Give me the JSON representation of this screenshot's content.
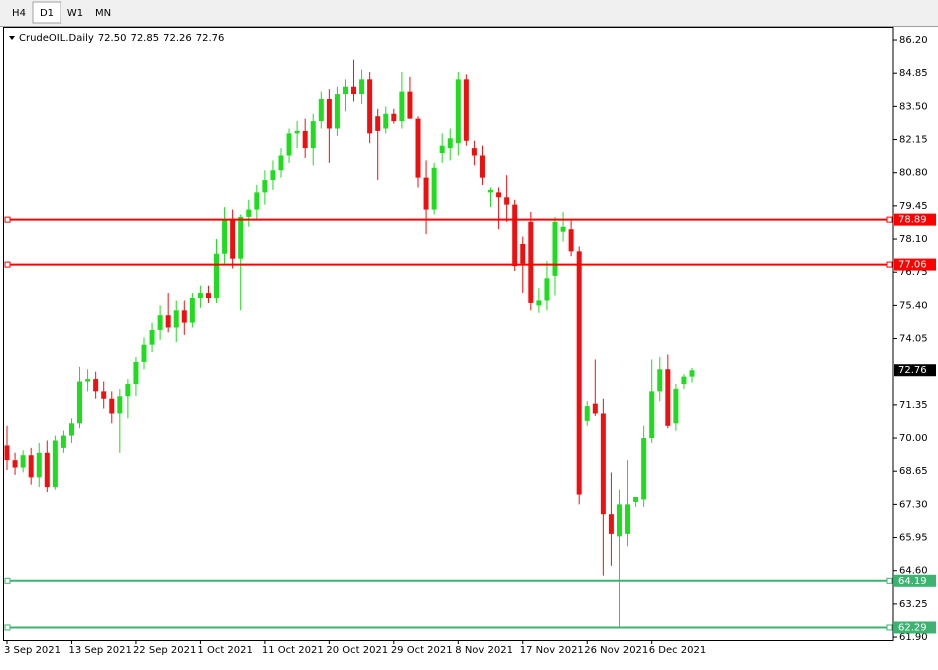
{
  "tabs": [
    "H4",
    "D1",
    "W1",
    "MN"
  ],
  "active_tab": "D1",
  "chart_data": {
    "type": "candlestick",
    "title": "CrudeOIL.Daily",
    "header_values": [
      "72.50",
      "72.85",
      "72.26",
      "72.76"
    ],
    "categories": [
      "3 Sep 2021",
      null,
      null,
      null,
      null,
      null,
      null,
      null,
      "13 Sep 2021",
      null,
      null,
      null,
      null,
      null,
      null,
      null,
      "22 Sep 2021",
      null,
      null,
      null,
      null,
      null,
      null,
      null,
      "1 Oct 2021",
      null,
      null,
      null,
      null,
      null,
      null,
      null,
      "11 Oct 2021",
      null,
      null,
      null,
      null,
      null,
      null,
      null,
      "20 Oct 2021",
      null,
      null,
      null,
      null,
      null,
      null,
      null,
      "29 Oct 2021",
      null,
      null,
      null,
      null,
      null,
      null,
      null,
      "8 Nov 2021",
      null,
      null,
      null,
      null,
      null,
      null,
      null,
      "17 Nov 2021",
      null,
      null,
      null,
      null,
      null,
      null,
      null,
      "26 Nov 2021",
      null,
      null,
      null,
      null,
      null,
      null,
      null,
      "6 Dec 2021",
      null,
      null,
      null,
      null,
      null
    ],
    "open": [
      69.7,
      69.1,
      68.8,
      69.3,
      68.4,
      69.4,
      68.0,
      69.6,
      70.1,
      70.6,
      72.3,
      72.4,
      71.9,
      71.6,
      71.0,
      71.7,
      72.2,
      73.1,
      73.8,
      74.4,
      75.0,
      74.5,
      75.2,
      74.7,
      75.7,
      75.9,
      75.7,
      77.5,
      78.9,
      77.3,
      79.0,
      79.3,
      80.0,
      80.5,
      80.9,
      81.5,
      82.4,
      82.5,
      81.8,
      82.9,
      83.8,
      82.6,
      84.0,
      84.3,
      84.0,
      84.6,
      83.1,
      82.6,
      83.2,
      82.9,
      84.1,
      83.0,
      80.6,
      79.3,
      81.6,
      81.8,
      82.0,
      84.6,
      81.8,
      81.5,
      80.0,
      80.0,
      79.8,
      79.5,
      77.9,
      78.8,
      75.4,
      75.6,
      76.6,
      78.4,
      78.5,
      77.6,
      70.7,
      71.4,
      71.0,
      66.9,
      66.0,
      66.1,
      67.4,
      67.5,
      70.0,
      71.9,
      72.8,
      70.6,
      72.2,
      72.5
    ],
    "high": [
      70.5,
      69.4,
      69.5,
      69.6,
      69.8,
      69.9,
      70.1,
      70.3,
      70.8,
      72.9,
      72.8,
      72.7,
      72.3,
      71.9,
      72.0,
      72.4,
      73.3,
      74.1,
      74.7,
      75.4,
      75.9,
      75.6,
      75.6,
      75.9,
      76.2,
      76.2,
      78.1,
      79.4,
      79.3,
      79.1,
      79.7,
      80.3,
      80.9,
      81.3,
      81.8,
      82.6,
      82.9,
      83.0,
      83.2,
      84.1,
      84.2,
      84.3,
      84.6,
      85.4,
      85.0,
      84.9,
      83.4,
      83.5,
      83.4,
      84.9,
      84.7,
      83.1,
      81.3,
      81.2,
      82.4,
      82.6,
      84.9,
      84.8,
      82.1,
      81.9,
      80.2,
      80.2,
      80.7,
      79.7,
      78.2,
      79.2,
      76.1,
      77.2,
      79.0,
      79.2,
      78.9,
      77.8,
      71.5,
      73.2,
      71.6,
      68.6,
      67.9,
      69.1,
      67.6,
      70.5,
      73.2,
      73.3,
      73.4,
      72.2,
      72.6,
      72.85
    ],
    "low": [
      68.7,
      68.5,
      68.6,
      68.1,
      68.0,
      67.8,
      67.9,
      69.4,
      69.8,
      70.4,
      71.9,
      71.6,
      71.2,
      70.6,
      69.4,
      70.8,
      71.7,
      72.8,
      73.5,
      74.0,
      74.3,
      73.9,
      74.2,
      74.5,
      75.3,
      75.5,
      75.5,
      77.1,
      76.9,
      75.2,
      78.6,
      78.9,
      79.5,
      80.1,
      80.6,
      81.2,
      81.8,
      81.4,
      81.1,
      82.6,
      81.2,
      82.3,
      83.3,
      83.7,
      83.6,
      82.0,
      80.5,
      82.4,
      82.8,
      82.6,
      83.0,
      80.2,
      78.3,
      79.1,
      81.2,
      81.3,
      81.5,
      81.9,
      81.1,
      80.3,
      79.4,
      78.5,
      78.8,
      76.8,
      75.9,
      75.2,
      75.1,
      75.2,
      75.8,
      78.0,
      77.4,
      67.3,
      70.5,
      70.9,
      64.4,
      64.8,
      62.3,
      65.6,
      67.2,
      67.2,
      69.8,
      71.5,
      70.4,
      70.3,
      72.0,
      72.26
    ],
    "close": [
      69.1,
      68.8,
      69.3,
      68.4,
      69.4,
      68.0,
      69.9,
      70.1,
      70.6,
      72.3,
      72.4,
      71.9,
      71.6,
      71.0,
      71.7,
      72.2,
      73.1,
      73.8,
      74.4,
      75.0,
      74.5,
      75.2,
      74.7,
      75.7,
      75.9,
      75.7,
      77.5,
      78.9,
      77.3,
      79.0,
      79.3,
      80.0,
      80.5,
      80.9,
      81.5,
      82.4,
      82.5,
      81.8,
      82.9,
      83.8,
      82.6,
      84.0,
      84.3,
      84.0,
      84.6,
      82.4,
      82.5,
      83.2,
      82.9,
      84.1,
      83.0,
      80.6,
      79.3,
      81.0,
      81.9,
      82.2,
      84.6,
      82.1,
      81.5,
      80.6,
      80.1,
      79.8,
      79.5,
      77.0,
      77.1,
      75.5,
      75.6,
      76.5,
      78.8,
      78.6,
      77.6,
      67.7,
      71.3,
      71.0,
      66.9,
      66.1,
      67.3,
      67.3,
      67.6,
      70.0,
      71.9,
      72.8,
      70.5,
      72.0,
      72.5,
      72.76
    ],
    "up_color": "#1fdc1f",
    "down_color": "#ee1010",
    "last_price_color": "#000000",
    "ylim": [
      61.78,
      86.69
    ],
    "yticks": [
      {
        "value": 86.2,
        "label": "86.20"
      },
      {
        "value": 84.85,
        "label": "84.85"
      },
      {
        "value": 83.5,
        "label": "83.50"
      },
      {
        "value": 82.15,
        "label": "82.15"
      },
      {
        "value": 80.8,
        "label": "80.80"
      },
      {
        "value": 79.45,
        "label": "79.45"
      },
      {
        "value": 78.1,
        "label": "78.10"
      },
      {
        "value": 76.75,
        "label": "76.75"
      },
      {
        "value": 75.4,
        "label": "75.40"
      },
      {
        "value": 74.05,
        "label": "74.05"
      },
      {
        "value": 71.35,
        "label": "71.35"
      },
      {
        "value": 70.0,
        "label": "70.00"
      },
      {
        "value": 68.65,
        "label": "68.65"
      },
      {
        "value": 67.3,
        "label": "67.30"
      },
      {
        "value": 65.95,
        "label": "65.95"
      },
      {
        "value": 64.6,
        "label": "64.60"
      },
      {
        "value": 63.25,
        "label": "63.25"
      },
      {
        "value": 61.9,
        "label": "61.90"
      }
    ],
    "hlines": [
      {
        "value": 78.89,
        "color": "#ff0000"
      },
      {
        "value": 77.06,
        "color": "#ff0000"
      },
      {
        "value": 64.19,
        "color": "#3cb371"
      },
      {
        "value": 62.29,
        "color": "#3cb371"
      }
    ],
    "grid": false
  }
}
